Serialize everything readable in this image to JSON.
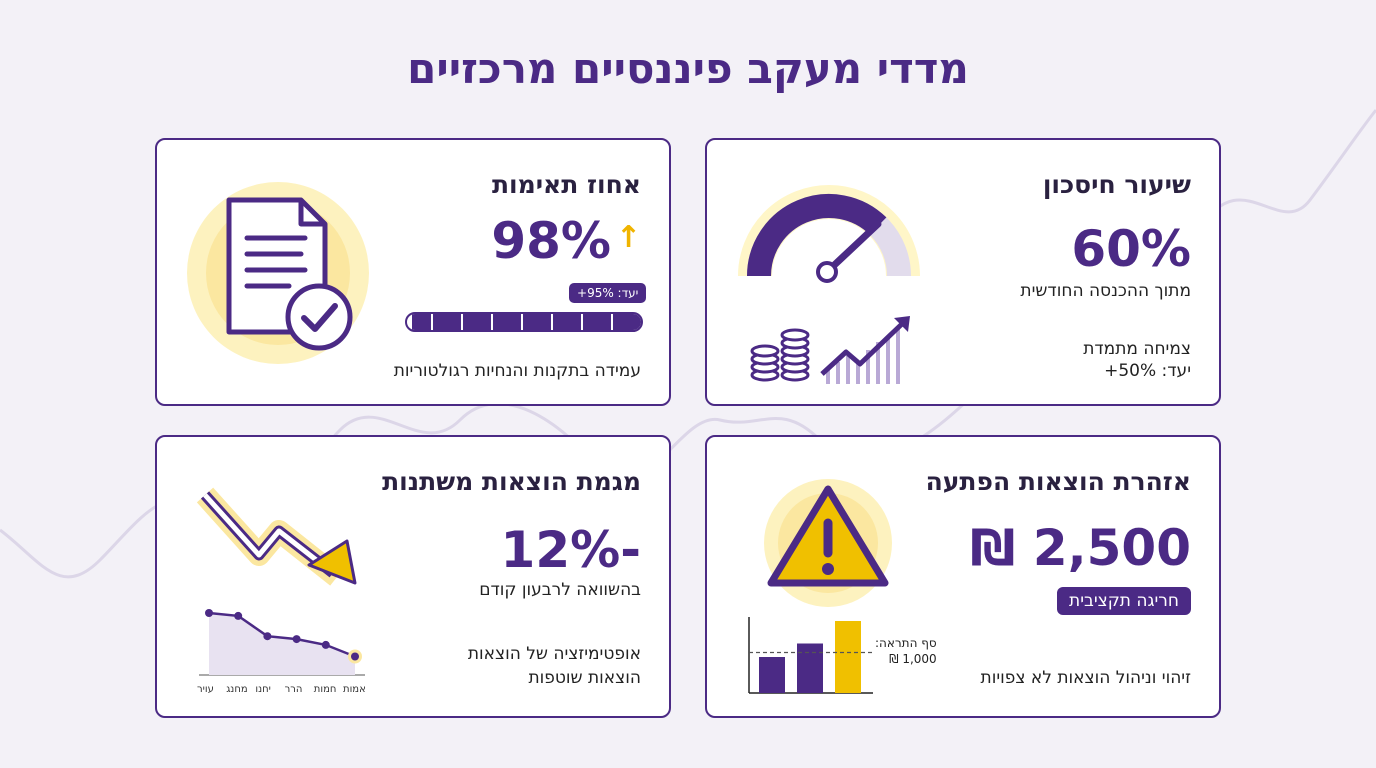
{
  "page_title": "מדדי מעקב פיננסיים מרכזיים",
  "colors": {
    "primary": "#4b2a85",
    "accent": "#f0c000",
    "background": "#f3f1f7"
  },
  "cards": {
    "savings": {
      "title": "שיעור חיסכון",
      "value": "60%",
      "subtitle": "מתוך ההכנסה החודשית",
      "growth": "צמיחה מתמדת",
      "target": "יעד: 50%+",
      "gauge_level": 0.6,
      "icons": [
        "gauge-icon",
        "coins-icon",
        "growth-chart-icon"
      ]
    },
    "compliance": {
      "title": "אחוז תאימות",
      "value": "98%",
      "trend_icon": "arrow-up-icon",
      "target_badge": "יעד: 95%+",
      "progress": 0.98,
      "description": "עמידה בתקנות והנחיות רגולטוריות",
      "icons": [
        "document-check-icon"
      ]
    },
    "unexpected": {
      "title": "אזהרת הוצאות הפתעה",
      "value": "2,500 ₪",
      "badge": "חריגה תקציבית",
      "threshold_label": "סף התראה:",
      "threshold_value": "1,000 ₪",
      "bars": [
        0.4,
        0.55,
        0.8
      ],
      "threshold_level": 0.45,
      "description": "זיהוי וניהול הוצאות לא צפויות",
      "icons": [
        "warning-icon"
      ]
    },
    "variable": {
      "title": "מגמת הוצאות משתנות",
      "value": "-12%",
      "subtitle": "בהשוואה לרבעון קודם",
      "description_line1": "אופטימיזציה של הוצאות",
      "description_line2": "הוצאות שוטפות",
      "months": [
        "אמות",
        "חמות",
        "הרר",
        "יחנו",
        "מחנג",
        "עויר"
      ],
      "trend_values": [
        0.25,
        0.45,
        0.55,
        0.6,
        0.95,
        1.0
      ],
      "icons": [
        "down-trend-arrow-icon"
      ]
    }
  }
}
